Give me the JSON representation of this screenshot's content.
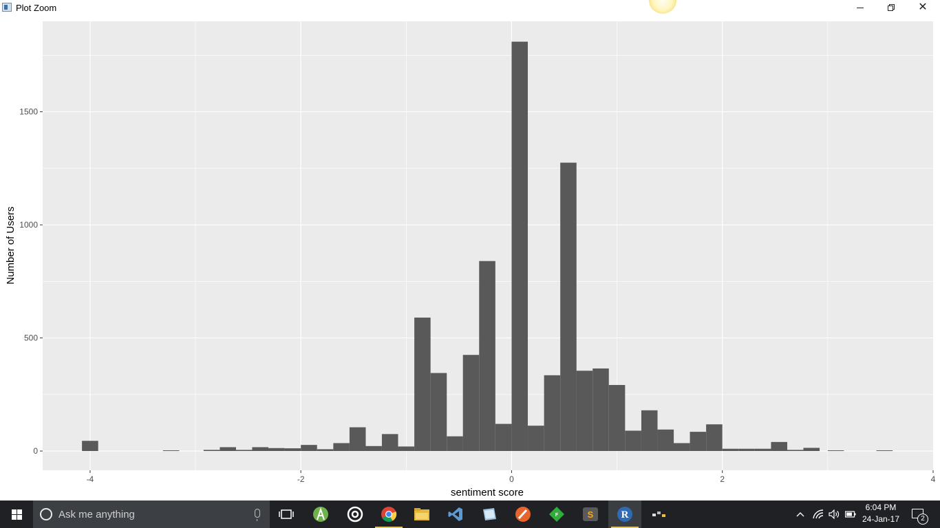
{
  "window": {
    "title": "Plot Zoom"
  },
  "chart_data": {
    "type": "bar",
    "xlabel": "sentiment score",
    "ylabel": "Number of Users",
    "xlim": [
      -4.45,
      4.0
    ],
    "ylim": [
      -85,
      1900
    ],
    "x_ticks": [
      -4,
      -2,
      0,
      2,
      4
    ],
    "x_tick_labels": [
      "-4",
      "-2",
      "0",
      "2",
      "4"
    ],
    "y_ticks": [
      0,
      500,
      1000,
      1500
    ],
    "y_tick_labels": [
      "0",
      "500",
      "1000",
      "1500"
    ],
    "grid": true,
    "bin_width": 0.1538,
    "bin_starts": [
      -4.077,
      -3.308,
      -2.923,
      -2.769,
      -2.615,
      -2.462,
      -2.308,
      -2.154,
      -2.0,
      -1.846,
      -1.692,
      -1.538,
      -1.385,
      -1.231,
      -1.077,
      -0.923,
      -0.769,
      -0.615,
      -0.462,
      -0.308,
      -0.154,
      0.0,
      0.154,
      0.308,
      0.462,
      0.615,
      0.769,
      0.923,
      1.077,
      1.231,
      1.385,
      1.538,
      1.692,
      1.846,
      2.0,
      2.154,
      2.308,
      2.462,
      2.615,
      2.769,
      3.0,
      3.462
    ],
    "values": [
      45,
      3,
      5,
      17,
      5,
      17,
      13,
      12,
      27,
      8,
      35,
      105,
      22,
      75,
      20,
      590,
      345,
      65,
      425,
      840,
      120,
      1810,
      112,
      335,
      1275,
      355,
      365,
      292,
      90,
      180,
      95,
      35,
      85,
      118,
      10,
      10,
      10,
      40,
      5,
      14,
      3,
      3
    ],
    "bar_color": "#595959",
    "panel_background": "#ebebeb",
    "grid_color": "#ffffff"
  },
  "taskbar": {
    "search_placeholder": "Ask me anything",
    "apps": [
      {
        "name": "task-view",
        "label": ""
      },
      {
        "name": "android-studio",
        "label": ""
      },
      {
        "name": "groove",
        "label": ""
      },
      {
        "name": "chrome",
        "label": ""
      },
      {
        "name": "file-explorer",
        "label": ""
      },
      {
        "name": "visual-studio",
        "label": ""
      },
      {
        "name": "notes",
        "label": ""
      },
      {
        "name": "paint",
        "label": ""
      },
      {
        "name": "app-green",
        "label": "F"
      },
      {
        "name": "sublime-text",
        "label": "S"
      },
      {
        "name": "r",
        "label": "R"
      }
    ],
    "clock_time": "6:04 PM",
    "clock_date": "24-Jan-17",
    "notification_count": "2"
  }
}
